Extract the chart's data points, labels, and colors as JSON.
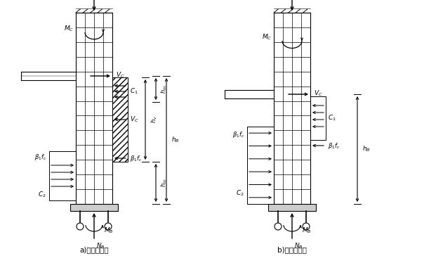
{
  "fig_width": 6.31,
  "fig_height": 3.64,
  "bg_color": "#ffffff",
  "line_color": "#000000",
  "label_a": "a)埋深较大时",
  "label_b": "b)埋深较小时"
}
